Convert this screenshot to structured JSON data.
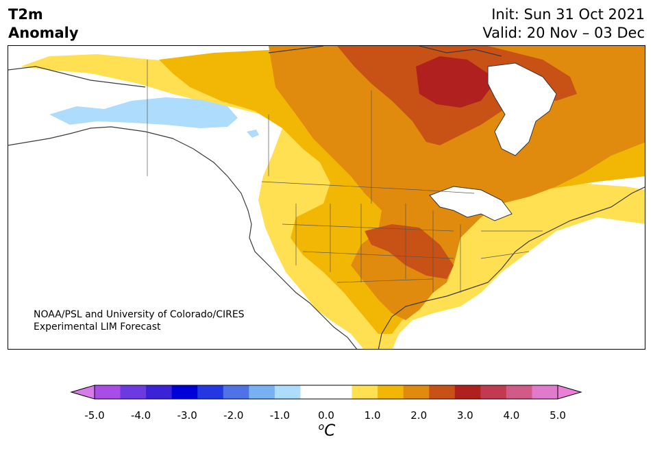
{
  "header": {
    "title_line1": "T2m",
    "title_line2": "Anomaly",
    "init": "Init: Sun 31 Oct 2021",
    "valid": "Valid: 20 Nov – 03 Dec"
  },
  "credit": {
    "line1": "NOAA/PSL and University of Colorado/CIRES",
    "line2": "Experimental LIM Forecast"
  },
  "colorbar": {
    "colors": [
      "#a84ee6",
      "#6b3ae0",
      "#3c22d6",
      "#0000d8",
      "#2338e0",
      "#4f73e6",
      "#78b1f2",
      "#addcfc",
      "#ffffff",
      "#ffffff",
      "#ffe052",
      "#f2b705",
      "#e08a0e",
      "#c85216",
      "#b0201f",
      "#c23a50",
      "#d15a86",
      "#e07acb"
    ],
    "min_extend_color": "#d77be8",
    "max_extend_color": "#eb7fd8",
    "tick_labels": [
      "-5.0",
      "-4.0",
      "-3.0",
      "-2.0",
      "-1.0",
      "0.0",
      "1.0",
      "2.0",
      "3.0",
      "4.0",
      "5.0"
    ],
    "unit_base": "C",
    "unit_sup": "o"
  },
  "map_legend_colors": {
    "anom_0_5": "#ffe052",
    "anom_1_0": "#f2b705",
    "anom_1_5": "#e08a0e",
    "anom_2_0": "#c85216",
    "anom_2_5": "#b0201f",
    "anom_neg_1_0": "#addcfc",
    "water": "#ffffff"
  }
}
